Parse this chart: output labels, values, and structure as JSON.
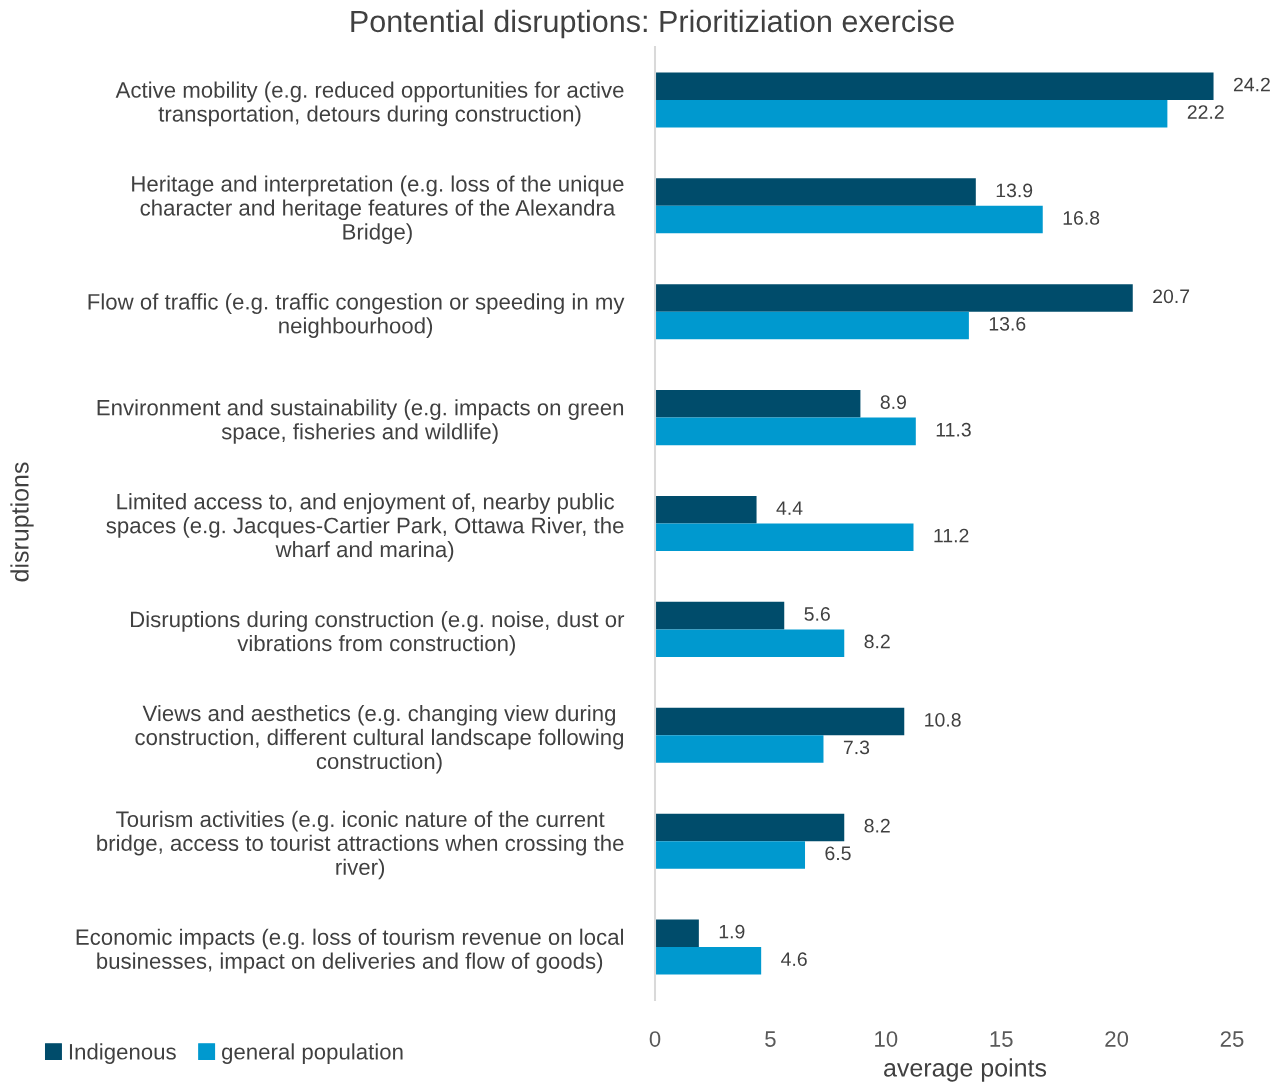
{
  "chart_data": {
    "type": "bar",
    "orientation": "horizontal",
    "title": "Pontential disruptions: Prioritiziation exercise",
    "xlabel": "average points",
    "ylabel": "disruptions",
    "categories": [
      "Active mobility (e.g. reduced opportunities for active\ntransportation, detours during construction)",
      "Heritage and interpretation (e.g. loss of the unique\ncharacter and heritage features of the Alexandra\nBridge)",
      "Flow of traffic (e.g. traffic congestion or speeding in my\nneighbourhood)",
      "Environment and sustainability (e.g. impacts on green\nspace, fisheries and wildlife)",
      "Limited access to, and enjoyment of, nearby public\nspaces (e.g. Jacques-Cartier Park, Ottawa River, the\nwharf and marina)",
      "Disruptions during construction (e.g. noise, dust or\nvibrations from construction)",
      "Views and aesthetics (e.g. changing view during\nconstruction, different cultural landscape following\nconstruction)",
      "Tourism activities (e.g. iconic nature of the current\nbridge, access to tourist attractions when crossing the\nriver)",
      "Economic impacts (e.g. loss of tourism revenue on local\nbusinesses, impact on deliveries and flow of goods)"
    ],
    "series": [
      {
        "name": "Indigenous",
        "color": "#004c6b",
        "values": [
          24.2,
          13.9,
          20.7,
          8.9,
          4.4,
          5.6,
          10.8,
          8.2,
          1.9
        ]
      },
      {
        "name": "general population",
        "color": "#0099cf",
        "values": [
          22.2,
          16.8,
          13.6,
          11.3,
          11.2,
          8.2,
          7.3,
          6.5,
          4.6
        ]
      }
    ],
    "xlim": [
      0,
      25
    ],
    "xticks": [
      0,
      5,
      10,
      15,
      20,
      25
    ],
    "grid": false,
    "legend": "bottom left",
    "data_labels": true
  }
}
